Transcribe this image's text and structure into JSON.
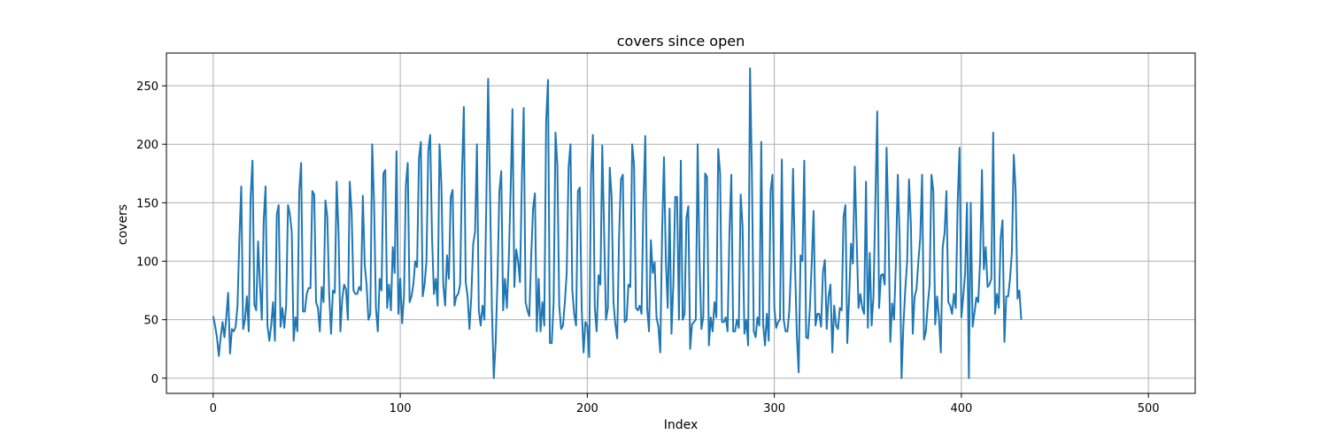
{
  "chart_data": {
    "type": "line",
    "title": "covers since open",
    "xlabel": "Index",
    "ylabel": "covers",
    "xlim": [
      -25,
      525
    ],
    "ylim": [
      -13,
      278
    ],
    "xticks": [
      0,
      100,
      200,
      300,
      400,
      500
    ],
    "yticks": [
      0,
      50,
      100,
      150,
      200,
      250
    ],
    "grid": true,
    "series": [
      {
        "color": "#1f77b4",
        "x_start": 0,
        "x_step": 1,
        "values": [
          53,
          45,
          35,
          19,
          35,
          48,
          35,
          52,
          73,
          21,
          42,
          40,
          44,
          62,
          120,
          164,
          42,
          50,
          70,
          40,
          155,
          186,
          63,
          58,
          117,
          80,
          50,
          135,
          164,
          45,
          32,
          45,
          65,
          32,
          140,
          148,
          44,
          60,
          43,
          62,
          148,
          140,
          125,
          32,
          52,
          40,
          160,
          184,
          57,
          57,
          72,
          77,
          77,
          160,
          157,
          65,
          60,
          40,
          78,
          65,
          152,
          138,
          72,
          38,
          75,
          73,
          168,
          125,
          40,
          68,
          80,
          76,
          50,
          168,
          142,
          75,
          72,
          72,
          78,
          75,
          156,
          97,
          80,
          50,
          55,
          200,
          150,
          60,
          40,
          85,
          75,
          175,
          178,
          60,
          80,
          58,
          112,
          90,
          194,
          55,
          85,
          47,
          70,
          165,
          184,
          65,
          70,
          80,
          100,
          95,
          188,
          202,
          70,
          80,
          100,
          195,
          208,
          120,
          72,
          85,
          62,
          200,
          165,
          80,
          62,
          105,
          85,
          155,
          161,
          62,
          70,
          72,
          80,
          175,
          232,
          82,
          70,
          42,
          70,
          115,
          125,
          200,
          58,
          45,
          62,
          50,
          150,
          256,
          158,
          60,
          0,
          30,
          85,
          160,
          177,
          58,
          85,
          60,
          100,
          160,
          230,
          78,
          110,
          100,
          82,
          168,
          231,
          65,
          58,
          53,
          104,
          145,
          158,
          40,
          85,
          40,
          65,
          45,
          220,
          255,
          30,
          30,
          65,
          210,
          182,
          62,
          42,
          45,
          65,
          90,
          180,
          200,
          75,
          55,
          45,
          160,
          163,
          60,
          22,
          48,
          45,
          18,
          175,
          208,
          60,
          40,
          88,
          80,
          199,
          125,
          50,
          60,
          180,
          155,
          65,
          46,
          34,
          122,
          170,
          174,
          48,
          50,
          80,
          78,
          200,
          182,
          60,
          58,
          62,
          55,
          150,
          207,
          60,
          40,
          118,
          90,
          99,
          52,
          44,
          22,
          125,
          189,
          100,
          60,
          145,
          38,
          80,
          155,
          155,
          50,
          186,
          50,
          55,
          137,
          147,
          25,
          46,
          48,
          50,
          200,
          100,
          42,
          52,
          175,
          172,
          28,
          52,
          40,
          65,
          52,
          196,
          175,
          48,
          48,
          52,
          40,
          125,
          174,
          40,
          40,
          50,
          43,
          157,
          130,
          38,
          50,
          28,
          265,
          175,
          40,
          35,
          52,
          45,
          202,
          46,
          28,
          55,
          32,
          160,
          174,
          60,
          43,
          48,
          50,
          187,
          50,
          40,
          40,
          58,
          98,
          179,
          100,
          38,
          5,
          105,
          100,
          186,
          35,
          34,
          60,
          99,
          143,
          45,
          55,
          55,
          44,
          91,
          101,
          42,
          70,
          80,
          22,
          62,
          45,
          42,
          60,
          58,
          138,
          148,
          30,
          70,
          115,
          98,
          181,
          120,
          60,
          72,
          60,
          55,
          168,
          43,
          107,
          45,
          70,
          150,
          228,
          60,
          88,
          89,
          80,
          197,
          130,
          31,
          64,
          50,
          100,
          174,
          120,
          0,
          45,
          76,
          100,
          170,
          132,
          38,
          70,
          76,
          100,
          120,
          174,
          33,
          40,
          62,
          80,
          174,
          160,
          46,
          70,
          52,
          22,
          112,
          124,
          160,
          65,
          62,
          55,
          72,
          60,
          150,
          197,
          52,
          70,
          90,
          150,
          0,
          150,
          44,
          56,
          69,
          65,
          100,
          178,
          93,
          112,
          78,
          80,
          85,
          210,
          55,
          72,
          60,
          120,
          135,
          31,
          70,
          70,
          85,
          108,
          191,
          160,
          68,
          75,
          50
        ]
      }
    ]
  }
}
